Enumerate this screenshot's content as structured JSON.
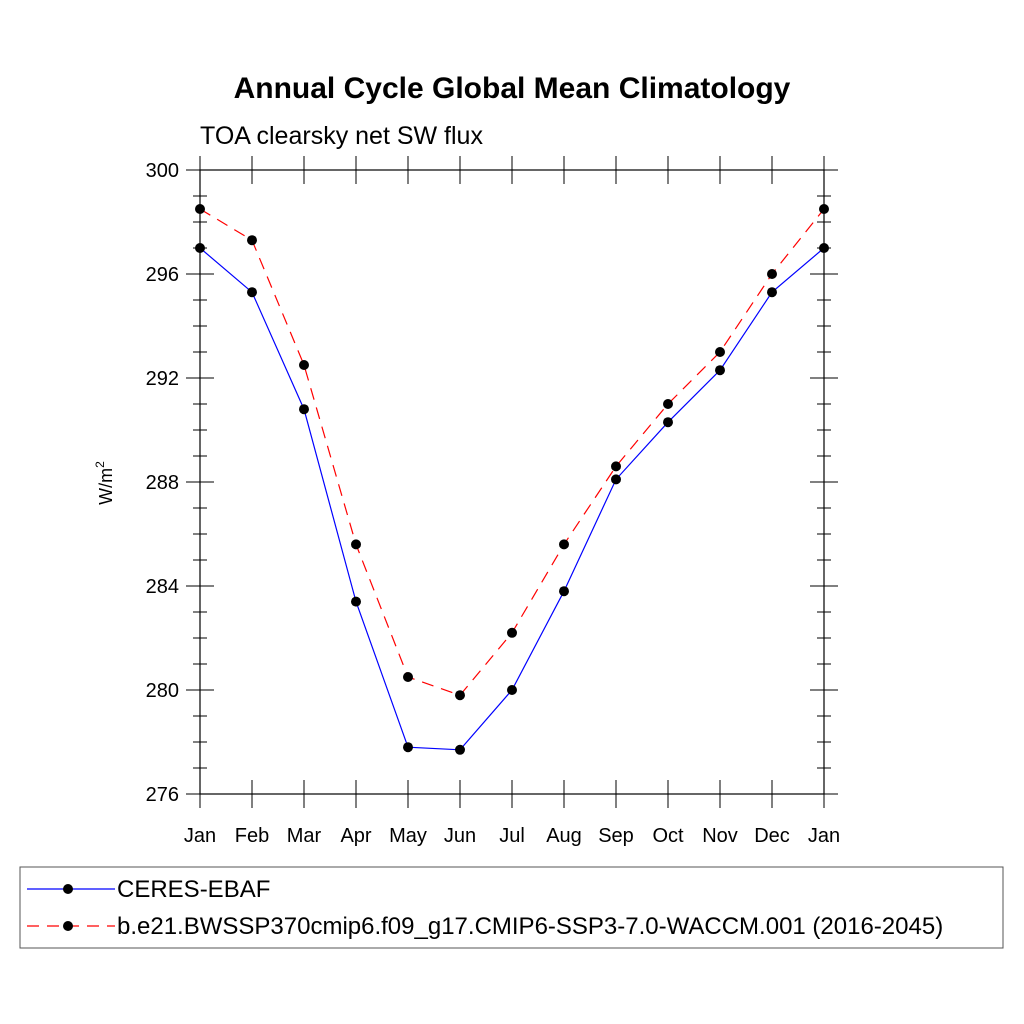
{
  "chart_data": {
    "type": "line",
    "title": "Annual Cycle Global Mean Climatology",
    "subtitle": "TOA clearsky net SW flux",
    "ylabel": "W/m",
    "ylabel_sup": "2",
    "categories": [
      "Jan",
      "Feb",
      "Mar",
      "Apr",
      "May",
      "Jun",
      "Jul",
      "Aug",
      "Sep",
      "Oct",
      "Nov",
      "Dec",
      "Jan"
    ],
    "ylim": [
      276,
      300
    ],
    "yticks": [
      276,
      280,
      284,
      288,
      292,
      296,
      300
    ],
    "ytick_labels": [
      "276",
      "280",
      "284",
      "288",
      "292",
      "296",
      "300"
    ],
    "grid": false,
    "legend_position": "bottom",
    "series": [
      {
        "name": "CERES-EBAF",
        "color": "#0000ff",
        "dash": "solid",
        "values": [
          297.0,
          295.3,
          290.8,
          283.4,
          277.8,
          277.7,
          280.0,
          283.8,
          288.1,
          290.3,
          292.3,
          295.3,
          297.0
        ]
      },
      {
        "name": "b.e21.BWSSP370cmip6.f09_g17.CMIP6-SSP3-7.0-WACCM.001 (2016-2045)",
        "color": "#ff0000",
        "dash": "dashed",
        "values": [
          298.5,
          297.3,
          292.5,
          285.6,
          280.5,
          279.8,
          282.2,
          285.6,
          288.6,
          291.0,
          293.0,
          296.0,
          298.5
        ]
      }
    ]
  }
}
